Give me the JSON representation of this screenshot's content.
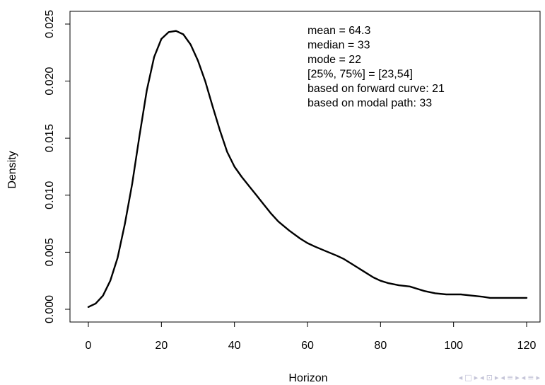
{
  "chart_data": {
    "type": "line",
    "title": "",
    "xlabel": "Horizon",
    "ylabel": "Density",
    "xlim": [
      0,
      120
    ],
    "ylim": [
      0,
      0.025
    ],
    "x_ticks": [
      "0",
      "20",
      "40",
      "60",
      "80",
      "100",
      "120"
    ],
    "y_ticks": [
      "0.000",
      "0.005",
      "0.010",
      "0.015",
      "0.020",
      "0.025"
    ],
    "grid": false,
    "legend": "none",
    "series": [
      {
        "color": "#000000",
        "x": [
          0,
          2,
          4,
          6,
          8,
          10,
          12,
          14,
          16,
          18,
          20,
          22,
          24,
          26,
          28,
          30,
          32,
          34,
          36,
          38,
          40,
          42,
          44,
          46,
          48,
          50,
          52,
          55,
          58,
          60,
          62,
          65,
          68,
          70,
          72,
          75,
          78,
          80,
          82,
          85,
          88,
          90,
          92,
          95,
          98,
          100,
          102,
          105,
          108,
          110,
          112,
          115,
          118,
          120
        ],
        "y": [
          0.0002,
          0.0005,
          0.0012,
          0.0025,
          0.0045,
          0.0075,
          0.011,
          0.0152,
          0.0192,
          0.0221,
          0.0237,
          0.0243,
          0.0244,
          0.0241,
          0.0232,
          0.0218,
          0.02,
          0.0178,
          0.0157,
          0.0138,
          0.0125,
          0.0116,
          0.0108,
          0.01,
          0.0092,
          0.0084,
          0.0077,
          0.0069,
          0.0062,
          0.0058,
          0.0055,
          0.0051,
          0.0047,
          0.0044,
          0.004,
          0.0034,
          0.0028,
          0.0025,
          0.0023,
          0.0021,
          0.002,
          0.0018,
          0.0016,
          0.0014,
          0.0013,
          0.0013,
          0.0013,
          0.0012,
          0.0011,
          0.001,
          0.001,
          0.001,
          0.001,
          0.001
        ]
      }
    ],
    "annotations": [
      "mean   = 64.3",
      "median = 33",
      "mode   = 22",
      "[25%, 75%] = [23,54]",
      "based on forward curve: 21",
      "based on modal path: 33"
    ]
  },
  "nav": {
    "icons": [
      "slide-prev-icon",
      "slide-icon",
      "slide-next-icon",
      "frame-prev-icon",
      "frame-icon",
      "frame-next-icon",
      "section-prev-icon",
      "section-icon",
      "section-next-icon",
      "subsection-prev-icon",
      "subsection-icon",
      "subsection-next-icon"
    ],
    "glyphs": [
      "◂",
      "□",
      "▸",
      "◂",
      "⊡",
      "▸",
      "◂",
      "≡",
      "▸",
      "◂",
      "≡",
      "▸"
    ],
    "color": "#c4c4d8"
  }
}
